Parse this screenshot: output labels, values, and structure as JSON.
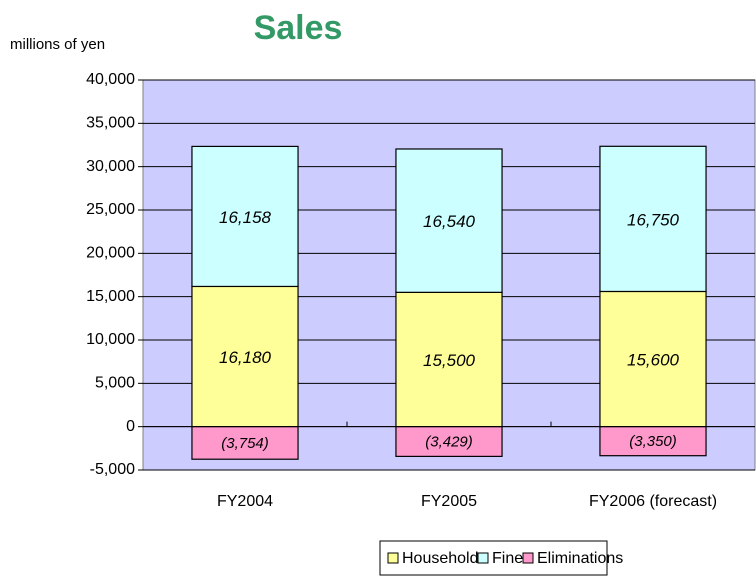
{
  "chart_data": {
    "type": "stacked_bar",
    "title": "Sales",
    "y_label": "millions of yen",
    "categories": [
      "FY2004",
      "FY2005",
      "FY2006 (forecast)"
    ],
    "series": [
      {
        "name": "Household",
        "color": "#ffff99",
        "values": [
          16180,
          15500,
          15600
        ],
        "value_labels": [
          "16,180",
          "15,500",
          "15,600"
        ]
      },
      {
        "name": "Fine",
        "color": "#ccffff",
        "values": [
          16158,
          16540,
          16750
        ],
        "value_labels": [
          "16,158",
          "16,540",
          "16,750"
        ]
      },
      {
        "name": "Eliminations",
        "color": "#ff99cc",
        "values": [
          -3754,
          -3429,
          -3350
        ],
        "value_labels": [
          "(3,754)",
          "(3,429)",
          "(3,350)"
        ]
      }
    ],
    "ylim": [
      -5000,
      40000
    ],
    "yticks": [
      {
        "value": -5000,
        "label": "-5,000"
      },
      0,
      {
        "value": 5000,
        "label": "5,000"
      },
      {
        "value": 10000,
        "label": "10,000"
      },
      {
        "value": 15000,
        "label": "15,000"
      },
      {
        "value": 20000,
        "label": "20,000"
      },
      {
        "value": 25000,
        "label": "25,000"
      },
      {
        "value": 30000,
        "label": "30,000"
      },
      {
        "value": 35000,
        "label": "35,000"
      },
      {
        "value": 40000,
        "label": "40,000"
      }
    ],
    "grid": true,
    "plot_background": "#ccccff",
    "legend": "bottom"
  }
}
